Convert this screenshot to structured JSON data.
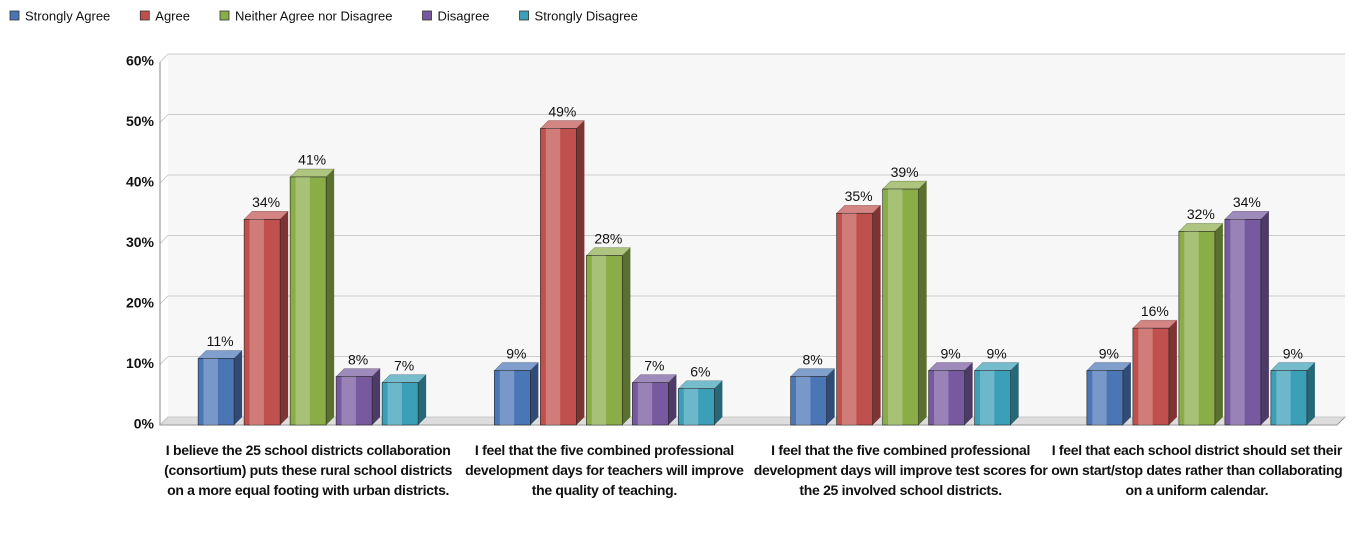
{
  "chart_data": {
    "type": "bar",
    "categories": [
      "I believe the 25 school districts collaboration (consortium) puts these rural school districts on a more equal footing with urban districts.",
      "I feel that the five combined professional development days for teachers will improve the quality of teaching.",
      "I feel that the five combined professional development days will improve test scores for the 25 involved school districts.",
      "I feel that each school district should set their own start/stop dates rather than collaborating on a uniform calendar."
    ],
    "series": [
      {
        "name": "Strongly Agree",
        "color": "#4a76b6",
        "values": [
          11,
          9,
          8,
          9
        ],
        "value_labels": [
          "11%",
          "9%",
          "8%",
          "9%"
        ]
      },
      {
        "name": "Agree",
        "color": "#c0504d",
        "values": [
          34,
          49,
          35,
          16
        ],
        "value_labels": [
          "34%",
          "49%",
          "35%",
          "16%"
        ]
      },
      {
        "name": "Neither Agree nor Disagree",
        "color": "#8aad48",
        "values": [
          41,
          28,
          39,
          32
        ],
        "value_labels": [
          "41%",
          "28%",
          "39%",
          "32%"
        ]
      },
      {
        "name": "Disagree",
        "color": "#76599e",
        "values": [
          8,
          7,
          9,
          34
        ],
        "value_labels": [
          "8%",
          "7%",
          "9%",
          "34%"
        ]
      },
      {
        "name": "Strongly Disagree",
        "color": "#3b9fb8",
        "values": [
          7,
          6,
          9,
          9
        ],
        "value_labels": [
          "7%",
          "6%",
          "9%",
          "9%"
        ]
      }
    ],
    "ylim": [
      0,
      60
    ],
    "yticks": [
      {
        "value": 0,
        "label": "0%"
      },
      {
        "value": 10,
        "label": "10%"
      },
      {
        "value": 20,
        "label": "20%"
      },
      {
        "value": 30,
        "label": "30%"
      },
      {
        "value": 40,
        "label": "40%"
      },
      {
        "value": 50,
        "label": "50%"
      },
      {
        "value": 60,
        "label": "60%"
      }
    ],
    "grid": true,
    "legend": "top"
  }
}
